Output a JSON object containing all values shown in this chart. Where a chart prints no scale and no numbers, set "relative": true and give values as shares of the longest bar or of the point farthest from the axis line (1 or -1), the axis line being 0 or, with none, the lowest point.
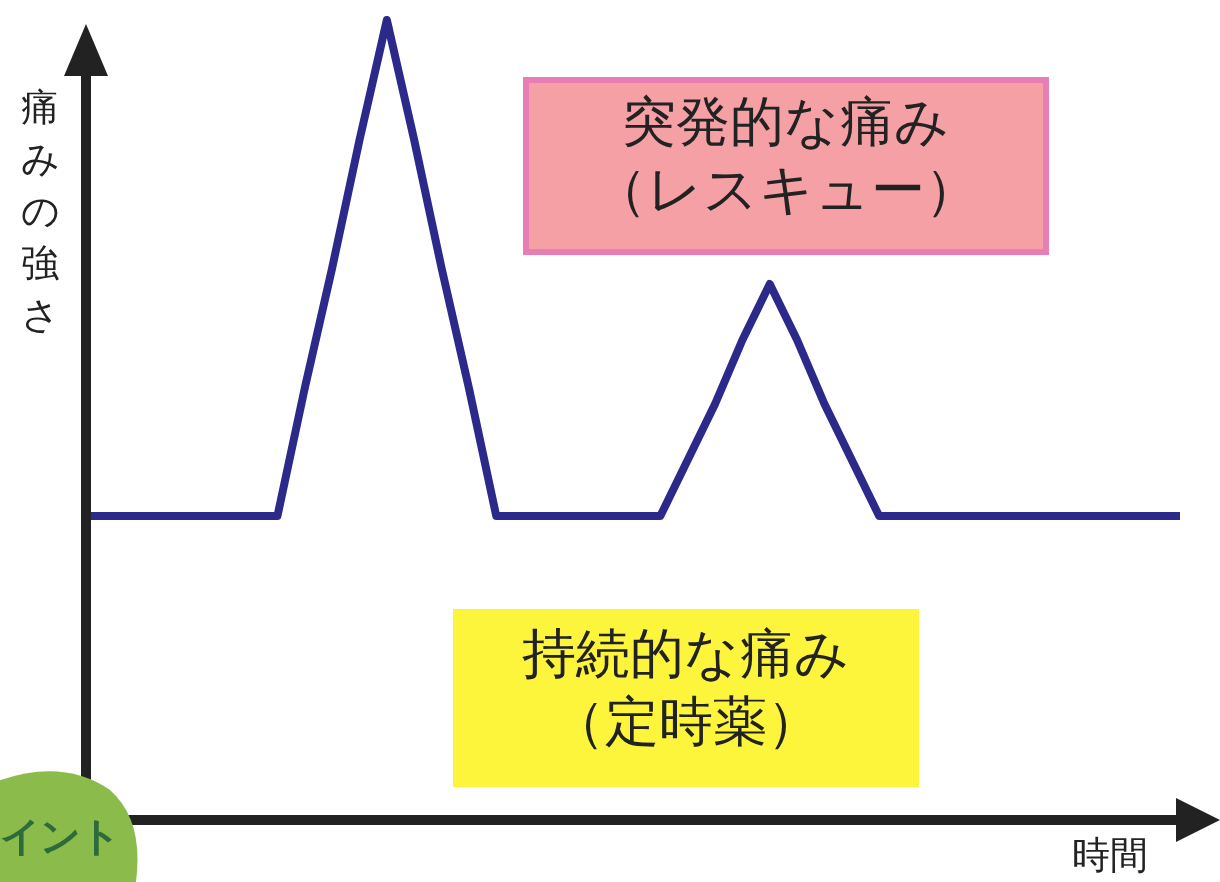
{
  "chart_data": {
    "type": "line",
    "relative": true,
    "ylabel": "痛みの強さ",
    "xlabel": "時間",
    "categories": [
      null,
      null,
      null,
      null,
      null,
      null,
      null,
      null,
      null,
      null,
      null,
      null,
      null,
      null,
      null,
      null,
      null,
      null,
      null,
      null,
      null,
      null,
      null,
      null,
      null,
      null,
      null,
      null,
      null,
      null,
      null,
      null,
      null,
      null,
      null,
      null,
      null,
      null,
      null,
      null,
      null
    ],
    "series": [
      {
        "color": "#2b2a8a",
        "values": [
          0.38,
          0.38,
          0.38,
          0.38,
          0.38,
          0.38,
          0.38,
          0.38,
          0.54,
          0.69,
          0.85,
          1,
          0.85,
          0.69,
          0.54,
          0.38,
          0.38,
          0.38,
          0.38,
          0.38,
          0.38,
          0.38,
          0.45,
          0.52,
          0.6,
          0.67,
          0.6,
          0.52,
          0.45,
          0.38,
          0.38,
          0.38,
          0.38,
          0.38,
          0.38,
          0.38,
          0.38,
          0.38,
          0.38,
          0.38,
          0.38
        ]
      }
    ],
    "annotations": [
      "突発的な痛み",
      "（レスキュー）",
      "持続的な痛み",
      "（定時薬）",
      "イント"
    ]
  }
}
